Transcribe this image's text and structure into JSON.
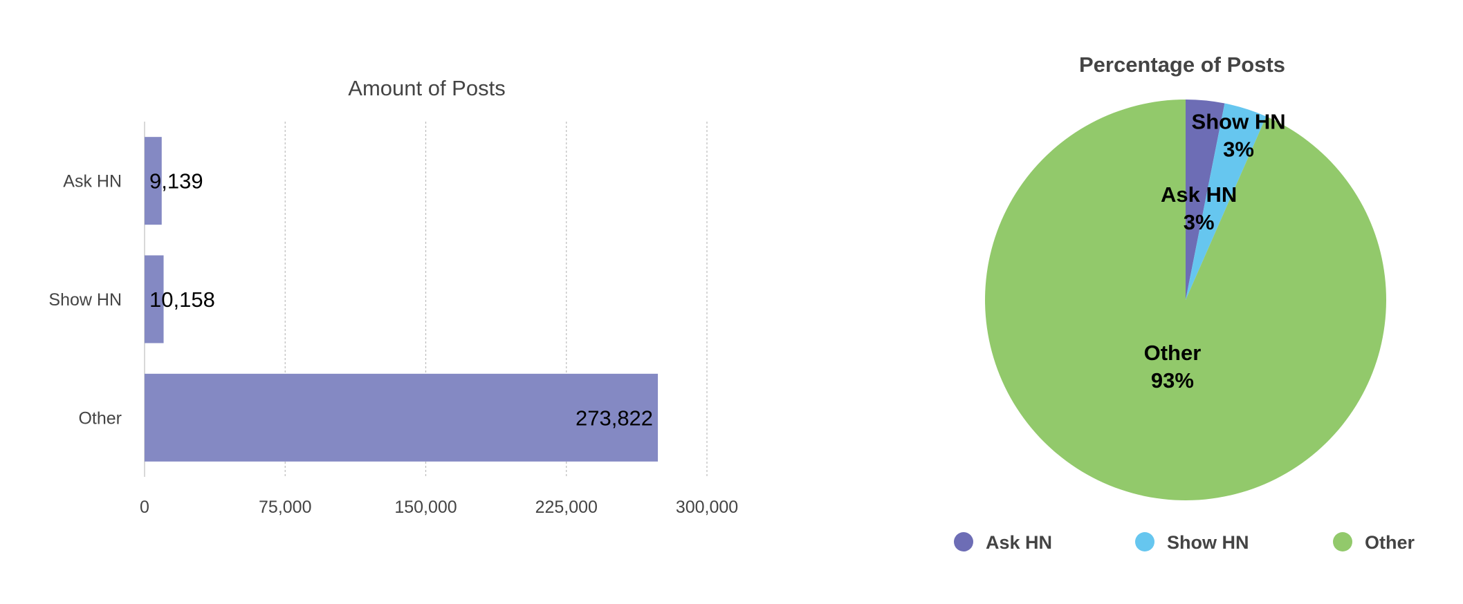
{
  "chart_data": [
    {
      "type": "bar",
      "orientation": "horizontal",
      "title": "Amount of Posts",
      "categories": [
        "Ask HN",
        "Show HN",
        "Other"
      ],
      "values": [
        9139,
        10158,
        273822
      ],
      "value_labels": [
        "9,139",
        "10,158",
        "273,822"
      ],
      "xlim": [
        0,
        300000
      ],
      "xticks": [
        0,
        75000,
        150000,
        225000,
        300000
      ],
      "xtick_labels": [
        "0",
        "75,000",
        "150,000",
        "225,000",
        "300,000"
      ],
      "grid": "vertical dashed",
      "bar_color": "#8489c3"
    },
    {
      "type": "pie",
      "title": "Percentage of Posts",
      "labels": [
        "Ask HN",
        "Show HN",
        "Other"
      ],
      "values": [
        9139,
        10158,
        273822
      ],
      "percent_labels": [
        "3%",
        "3%",
        "93%"
      ],
      "colors": [
        "#6d6db5",
        "#66c6ef",
        "#92c96b"
      ],
      "legend_position": "bottom"
    }
  ]
}
